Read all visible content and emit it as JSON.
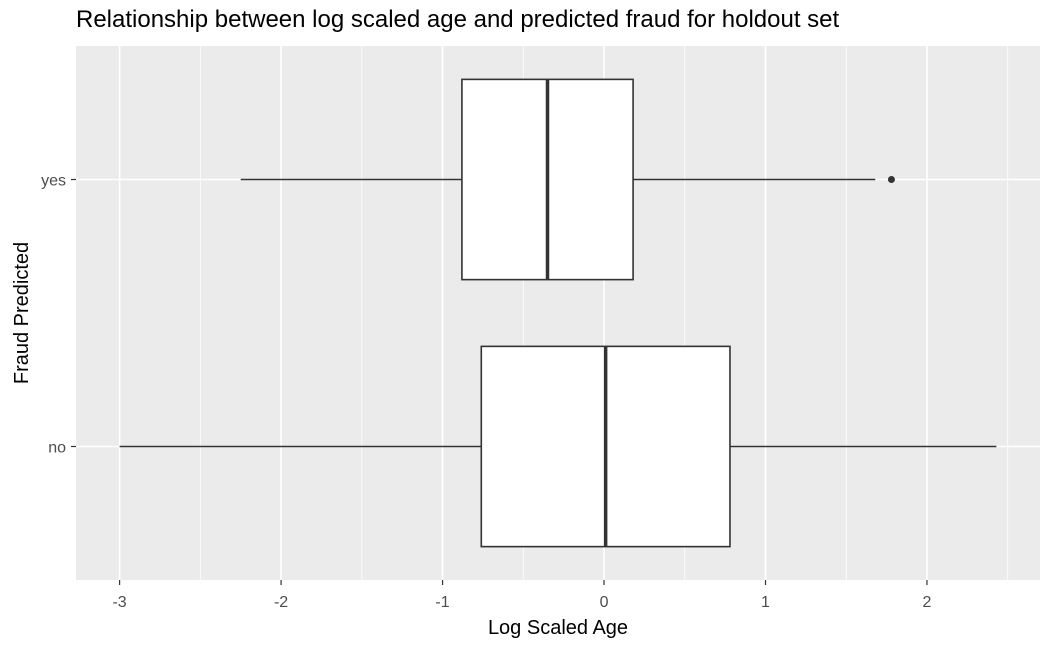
{
  "chart_data": {
    "type": "boxplot",
    "title": "Relationship between log scaled age and predicted fraud for holdout set",
    "xlabel": "Log Scaled Age",
    "ylabel": "Fraud Predicted",
    "xlim": [
      -3.27,
      2.7
    ],
    "x_ticks": [
      -3,
      -2,
      -1,
      0,
      1,
      2
    ],
    "x_tick_labels": [
      "-3",
      "-2",
      "-1",
      "0",
      "1",
      "2"
    ],
    "categories": [
      "no",
      "yes"
    ],
    "boxes": [
      {
        "category": "no",
        "whisker_low": -3.0,
        "q1": -0.76,
        "median": 0.01,
        "q3": 0.78,
        "whisker_high": 2.43,
        "outliers": []
      },
      {
        "category": "yes",
        "whisker_low": -2.25,
        "q1": -0.88,
        "median": -0.35,
        "q3": 0.18,
        "whisker_high": 1.68,
        "outliers": [
          1.78
        ]
      }
    ],
    "grid": true,
    "colors": {
      "panel": "#ebebeb",
      "grid": "#ffffff",
      "box_fill": "#ffffff",
      "box_line": "#333333",
      "tick_text": "#4d4d4d"
    }
  }
}
